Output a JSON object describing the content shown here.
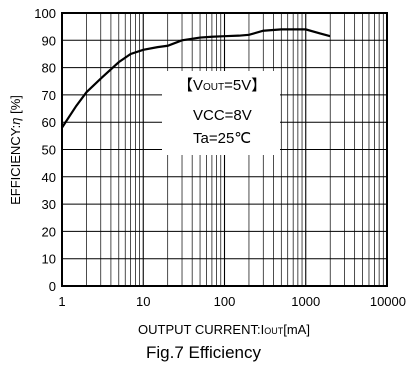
{
  "chart_data": {
    "type": "line",
    "title": "",
    "xlabel_prefix": "OUTPUT CURRENT:I",
    "xlabel_sub": "OUT",
    "xlabel_suffix": "[mA]",
    "ylabel_prefix": "EFFICIENCY:",
    "ylabel_symbol": "η",
    "ylabel_suffix": " [%]",
    "x_scale": "log",
    "xlim": [
      1,
      10000
    ],
    "ylim": [
      0,
      100
    ],
    "x_ticks": [
      1,
      10,
      100,
      1000,
      10000
    ],
    "x_tick_labels": [
      "1",
      "10",
      "100",
      "1000",
      "10000"
    ],
    "y_ticks": [
      0,
      10,
      20,
      30,
      40,
      50,
      60,
      70,
      80,
      90,
      100
    ],
    "y_tick_labels": [
      "0",
      "10",
      "20",
      "30",
      "40",
      "50",
      "60",
      "70",
      "80",
      "90",
      "100"
    ],
    "grid": true,
    "annotations": {
      "vout_open": "【V",
      "vout_sub": "OUT",
      "vout_rest": "=5V】",
      "vcc": "VCC=8V",
      "ta": "Ta=25℃"
    },
    "series": [
      {
        "x": [
          1,
          1.5,
          2,
          3,
          5,
          7,
          10,
          15,
          20,
          30,
          50,
          70,
          100,
          150,
          200,
          300,
          500,
          700,
          1000,
          1500,
          2000
        ],
        "y": [
          58,
          66,
          71,
          76,
          82,
          85,
          86.5,
          87.5,
          88,
          90,
          91,
          91.3,
          91.5,
          91.7,
          92,
          93.5,
          94,
          94,
          94,
          92.5,
          91.5
        ]
      }
    ]
  },
  "caption": "Fig.7 Efficiency",
  "colors": {
    "line": "#000000",
    "grid": "#000000",
    "background": "#ffffff"
  }
}
